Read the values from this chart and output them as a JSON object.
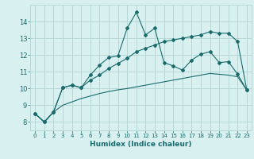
{
  "xlabel": "Humidex (Indice chaleur)",
  "x_values": [
    0,
    1,
    2,
    3,
    4,
    5,
    6,
    7,
    8,
    9,
    10,
    11,
    12,
    13,
    14,
    15,
    16,
    17,
    18,
    19,
    20,
    21,
    22,
    23
  ],
  "line1": [
    8.5,
    8.0,
    8.6,
    10.05,
    10.2,
    10.05,
    10.8,
    11.4,
    11.85,
    11.95,
    13.6,
    14.55,
    13.2,
    13.6,
    11.55,
    11.35,
    11.1,
    11.7,
    12.05,
    12.2,
    11.55,
    11.6,
    10.85,
    9.9
  ],
  "line2": [
    8.5,
    8.0,
    8.6,
    10.05,
    10.2,
    10.05,
    10.5,
    10.8,
    11.2,
    11.5,
    11.8,
    12.2,
    12.4,
    12.6,
    12.8,
    12.9,
    13.0,
    13.1,
    13.2,
    13.4,
    13.3,
    13.3,
    12.8,
    9.9
  ],
  "line3": [
    8.5,
    8.0,
    8.6,
    9.0,
    9.2,
    9.4,
    9.55,
    9.7,
    9.82,
    9.92,
    10.0,
    10.1,
    10.2,
    10.3,
    10.4,
    10.5,
    10.6,
    10.7,
    10.8,
    10.9,
    10.85,
    10.8,
    10.7,
    9.9
  ],
  "line_color": "#1a6b6b",
  "bg_color": "#d8f0f0",
  "grid_color": "#b8d8d8",
  "ylim": [
    7.5,
    15.0
  ],
  "xlim": [
    -0.5,
    23.5
  ],
  "yticks": [
    8,
    9,
    10,
    11,
    12,
    13,
    14
  ],
  "xticks": [
    0,
    1,
    2,
    3,
    4,
    5,
    6,
    7,
    8,
    9,
    10,
    11,
    12,
    13,
    14,
    15,
    16,
    17,
    18,
    19,
    20,
    21,
    22,
    23
  ]
}
